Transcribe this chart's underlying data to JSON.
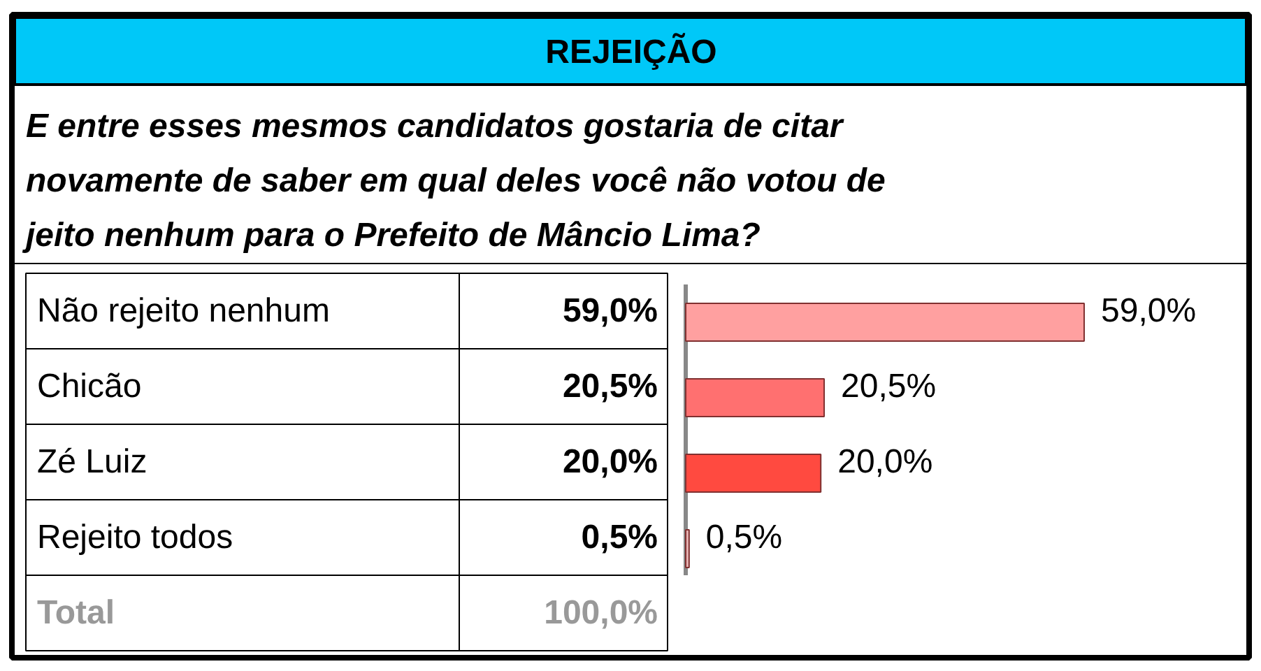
{
  "chart_data": {
    "type": "bar",
    "orientation": "horizontal",
    "title": "REJEIÇÃO",
    "subtitle": "E entre esses mesmos candidatos gostaria de citar novamente de saber em qual deles você não votou de jeito nenhum para o Prefeito de Mâncio Lima?",
    "categories": [
      "Não rejeito nenhum",
      "Chicão",
      "Zé Luiz",
      "Rejeito todos"
    ],
    "values": [
      59.0,
      20.5,
      20.0,
      0.5
    ],
    "colors": [
      "#ffa0a0",
      "#ff7070",
      "#ff4a40",
      "#e8b4b4"
    ],
    "value_labels": [
      "59,0%",
      "20,5%",
      "20,0%",
      "0,5%"
    ],
    "annotations": [
      "Total",
      "100,0%"
    ]
  }
}
